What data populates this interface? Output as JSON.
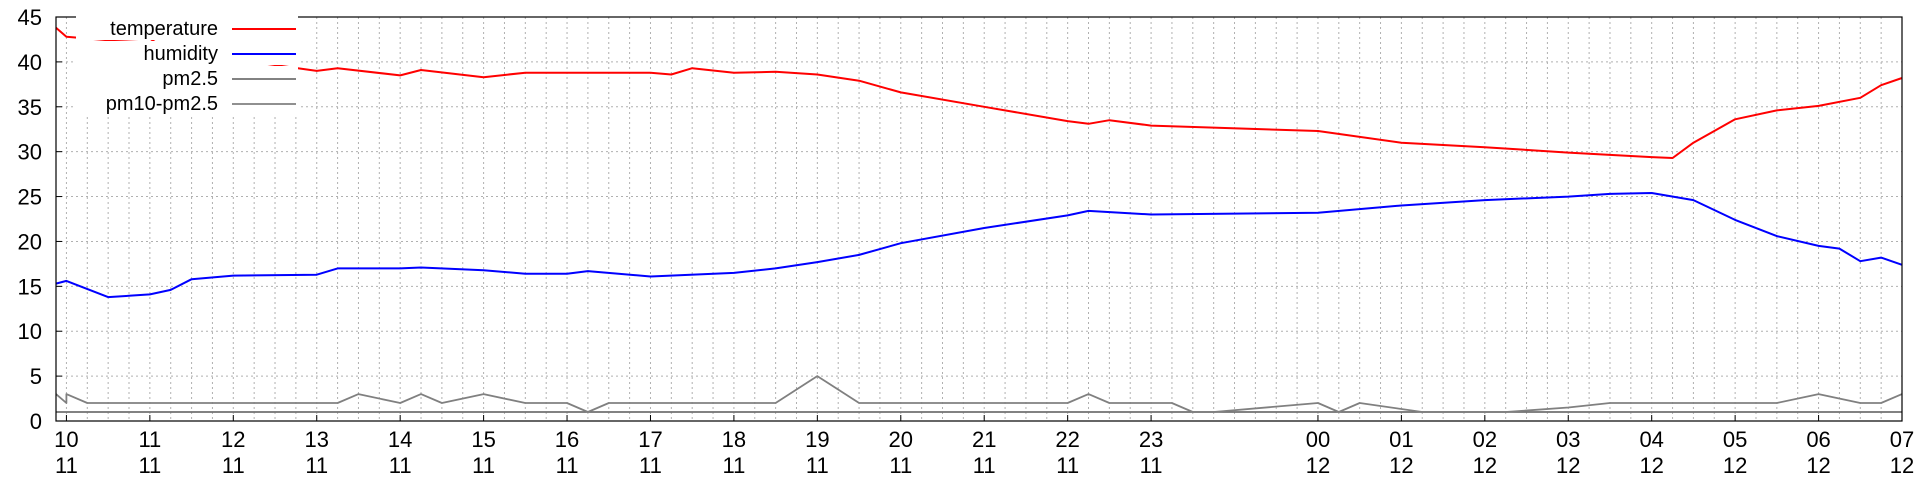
{
  "chart_data": {
    "type": "line",
    "title": "",
    "xlabel": "",
    "ylabel": "",
    "ylim": [
      0,
      45
    ],
    "yticks": [
      0,
      5,
      10,
      15,
      20,
      25,
      30,
      35,
      40,
      45
    ],
    "grid": true,
    "legend_placement": "top-left",
    "x_time_range": [
      "11-09 21:00",
      "12-07 00:00"
    ],
    "xticks": [
      {
        "time": "11-10 00:00",
        "day": "10",
        "month": "11"
      },
      {
        "time": "11-11 00:00",
        "day": "11",
        "month": "11"
      },
      {
        "time": "11-12 00:00",
        "day": "12",
        "month": "11"
      },
      {
        "time": "11-13 00:00",
        "day": "13",
        "month": "11"
      },
      {
        "time": "11-14 00:00",
        "day": "14",
        "month": "11"
      },
      {
        "time": "11-15 00:00",
        "day": "15",
        "month": "11"
      },
      {
        "time": "11-16 00:00",
        "day": "16",
        "month": "11"
      },
      {
        "time": "11-17 00:00",
        "day": "17",
        "month": "11"
      },
      {
        "time": "11-18 00:00",
        "day": "18",
        "month": "11"
      },
      {
        "time": "11-19 00:00",
        "day": "19",
        "month": "11"
      },
      {
        "time": "11-20 00:00",
        "day": "20",
        "month": "11"
      },
      {
        "time": "11-21 00:00",
        "day": "21",
        "month": "11"
      },
      {
        "time": "11-22 00:00",
        "day": "22",
        "month": "11"
      },
      {
        "time": "11-23 00:00",
        "day": "23",
        "month": "11"
      },
      {
        "time": "12-00 00:00",
        "day": "00",
        "month": "12"
      },
      {
        "time": "12-01 00:00",
        "day": "01",
        "month": "12"
      },
      {
        "time": "12-02 00:00",
        "day": "02",
        "month": "12"
      },
      {
        "time": "12-03 00:00",
        "day": "03",
        "month": "12"
      },
      {
        "time": "12-04 00:00",
        "day": "04",
        "month": "12"
      },
      {
        "time": "12-05 00:00",
        "day": "05",
        "month": "12"
      },
      {
        "time": "12-06 00:00",
        "day": "06",
        "month": "12"
      },
      {
        "time": "12-07 00:00",
        "day": "07",
        "month": "12"
      }
    ],
    "series": [
      {
        "name": "temperature",
        "color": "#ff0000",
        "points": [
          [
            "11-09 21:00",
            43.8
          ],
          [
            "11-10 00:00",
            42.8
          ],
          [
            "11-10 12:00",
            42.4
          ],
          [
            "11-11 00:00",
            42.6
          ],
          [
            "11-11 06:00",
            41.0
          ],
          [
            "11-12 00:00",
            40.3
          ],
          [
            "11-13 00:00",
            39.0
          ],
          [
            "11-13 06:00",
            39.3
          ],
          [
            "11-14 00:00",
            38.5
          ],
          [
            "11-14 06:00",
            39.1
          ],
          [
            "11-15 00:00",
            38.3
          ],
          [
            "11-15 12:00",
            38.8
          ],
          [
            "11-16 00:00",
            38.8
          ],
          [
            "11-17 00:00",
            38.8
          ],
          [
            "11-17 06:00",
            38.6
          ],
          [
            "11-17 12:00",
            39.3
          ],
          [
            "11-18 00:00",
            38.8
          ],
          [
            "11-18 12:00",
            38.9
          ],
          [
            "11-19 00:00",
            38.6
          ],
          [
            "11-19 12:00",
            37.9
          ],
          [
            "11-20 00:00",
            36.6
          ],
          [
            "11-21 00:00",
            35.0
          ],
          [
            "11-22 00:00",
            33.4
          ],
          [
            "11-22 06:00",
            33.1
          ],
          [
            "11-22 12:00",
            33.5
          ],
          [
            "11-23 00:00",
            32.9
          ],
          [
            "12-00 00:00",
            32.3
          ],
          [
            "12-01 00:00",
            31.0
          ],
          [
            "12-02 00:00",
            30.5
          ],
          [
            "12-03 00:00",
            29.9
          ],
          [
            "12-04 00:00",
            29.4
          ],
          [
            "12-04 06:00",
            29.3
          ],
          [
            "12-04 12:00",
            31.0
          ],
          [
            "12-05 00:00",
            33.6
          ],
          [
            "12-05 12:00",
            34.6
          ],
          [
            "12-06 00:00",
            35.1
          ],
          [
            "12-06 12:00",
            36.0
          ],
          [
            "12-06 18:00",
            37.4
          ],
          [
            "12-07 00:00",
            38.2
          ]
        ]
      },
      {
        "name": "humidity",
        "color": "#0000ff",
        "points": [
          [
            "11-09 21:00",
            15.3
          ],
          [
            "11-10 00:00",
            15.6
          ],
          [
            "11-10 12:00",
            13.8
          ],
          [
            "11-11 00:00",
            14.1
          ],
          [
            "11-11 06:00",
            14.6
          ],
          [
            "11-11 12:00",
            15.8
          ],
          [
            "11-12 00:00",
            16.2
          ],
          [
            "11-13 00:00",
            16.3
          ],
          [
            "11-13 06:00",
            17.0
          ],
          [
            "11-14 00:00",
            17.0
          ],
          [
            "11-14 06:00",
            17.1
          ],
          [
            "11-15 00:00",
            16.8
          ],
          [
            "11-15 12:00",
            16.4
          ],
          [
            "11-16 00:00",
            16.4
          ],
          [
            "11-16 06:00",
            16.7
          ],
          [
            "11-17 00:00",
            16.1
          ],
          [
            "11-18 00:00",
            16.5
          ],
          [
            "11-18 12:00",
            17.0
          ],
          [
            "11-19 00:00",
            17.7
          ],
          [
            "11-19 12:00",
            18.5
          ],
          [
            "11-20 00:00",
            19.8
          ],
          [
            "11-21 00:00",
            21.5
          ],
          [
            "11-22 00:00",
            22.9
          ],
          [
            "11-22 06:00",
            23.4
          ],
          [
            "11-23 00:00",
            23.0
          ],
          [
            "12-00 00:00",
            23.2
          ],
          [
            "12-01 00:00",
            24.0
          ],
          [
            "12-02 00:00",
            24.6
          ],
          [
            "12-03 00:00",
            25.0
          ],
          [
            "12-03 12:00",
            25.3
          ],
          [
            "12-04 00:00",
            25.4
          ],
          [
            "12-04 12:00",
            24.6
          ],
          [
            "12-05 00:00",
            22.4
          ],
          [
            "12-05 12:00",
            20.6
          ],
          [
            "12-06 00:00",
            19.5
          ],
          [
            "12-06 06:00",
            19.2
          ],
          [
            "12-06 12:00",
            17.8
          ],
          [
            "12-06 18:00",
            18.2
          ],
          [
            "12-07 00:00",
            17.4
          ]
        ]
      },
      {
        "name": "pm2.5",
        "color": "#707070",
        "points": [
          [
            "11-09 21:00",
            1
          ],
          [
            "12-07 00:00",
            1
          ]
        ]
      },
      {
        "name": "pm10-pm2.5",
        "color": "#808080",
        "points": [
          [
            "11-09 21:00",
            3
          ],
          [
            "11-10 00:00",
            2
          ],
          [
            "11-10 00:00",
            3
          ],
          [
            "11-10 06:00",
            2
          ],
          [
            "11-13 06:00",
            2
          ],
          [
            "11-13 12:00",
            3
          ],
          [
            "11-14 00:00",
            2
          ],
          [
            "11-14 06:00",
            3
          ],
          [
            "11-14 12:00",
            2
          ],
          [
            "11-15 00:00",
            3
          ],
          [
            "11-15 12:00",
            2
          ],
          [
            "11-16 00:00",
            2
          ],
          [
            "11-16 06:00",
            1
          ],
          [
            "11-16 12:00",
            2
          ],
          [
            "11-18 12:00",
            2
          ],
          [
            "11-19 00:00",
            5
          ],
          [
            "11-19 12:00",
            2
          ],
          [
            "11-22 00:00",
            2
          ],
          [
            "11-22 06:00",
            3
          ],
          [
            "11-22 12:00",
            2
          ],
          [
            "11-23 06:00",
            2
          ],
          [
            "11-23 12:00",
            1
          ],
          [
            "11-23 18:00",
            1
          ],
          [
            "12-00 00:00",
            2
          ],
          [
            "12-00 06:00",
            1
          ],
          [
            "12-00 12:00",
            2
          ],
          [
            "12-01 06:00",
            1
          ],
          [
            "12-02 06:00",
            1
          ],
          [
            "12-03 00:00",
            1.5
          ],
          [
            "12-03 12:00",
            2
          ],
          [
            "12-05 12:00",
            2
          ],
          [
            "12-06 00:00",
            3
          ],
          [
            "12-06 12:00",
            2
          ],
          [
            "12-06 18:00",
            2
          ],
          [
            "12-07 00:00",
            3
          ]
        ]
      }
    ]
  }
}
